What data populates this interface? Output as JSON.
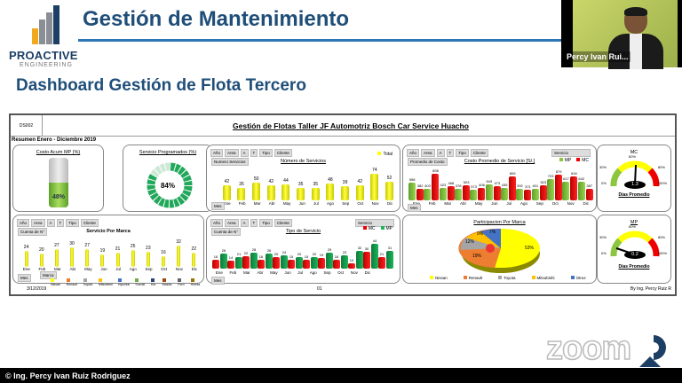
{
  "header": {
    "logo_brand": "PROACTIVE",
    "logo_sub": "ENGINEERING",
    "title": "Gestión de Mantenimiento",
    "subtitle": "Dashboard Gestión de Flota Tercero"
  },
  "webcam": {
    "participant_name": "Percy Ivan Rui..."
  },
  "dashboard": {
    "code": "DS002",
    "title": "Gestión de Flotas Taller JF Automotriz Bosch Car Service Huacho",
    "summary": "Resumen Enero - Diciembre 2019",
    "filters": [
      "Año",
      "Area",
      "A",
      "T",
      "Tipo",
      "Cliente"
    ],
    "month_filter": "Mes",
    "footer_date": "3/12/2019",
    "footer_page": "01",
    "footer_author": "By Ing. Percy Ruiz R"
  },
  "panels": {
    "costo_mp": {
      "title": "Costo Acum MP (%)",
      "value": "48%"
    },
    "servicio_programado": {
      "title": "Servicio Programados (%)",
      "value": "84%"
    },
    "numero_servicios": {
      "title": "Número de Servicios",
      "tag": "Numero Servicios",
      "legend": "Total"
    },
    "costo_promedio": {
      "title": "Costo Promedio de Servicio [S/.]",
      "tag": "Promedio de Costo",
      "selector": "Servicio",
      "legend_mp": "MP",
      "legend_mc": "MC"
    },
    "gauge_mc": {
      "title": "MC",
      "value": "1.3",
      "label": "Días Promedio",
      "ticks": [
        "0%",
        "30%",
        "60%",
        "80%",
        "100%"
      ]
    },
    "servicio_marca": {
      "title": "Servicio Por Marca",
      "tag": "Cuenta de N°",
      "marca_filter": "Marca",
      "legend": [
        "Nissan",
        "Renault",
        "Toyota",
        "Mitsubishi",
        "Hyundai",
        "Suzuki",
        "Kia",
        "Mazda",
        "Ford",
        "Honda"
      ]
    },
    "tipo_servicio": {
      "title": "Tipo de Servicio",
      "tag": "Cuenta de N°",
      "selector": "Servicio",
      "legend_mc": "MC",
      "legend_mp": "MP"
    },
    "participacion": {
      "title": "Participacion Por Marca",
      "legend": [
        "Nissan",
        "Renault",
        "Toyota",
        "Mitsubishi",
        "Otros"
      ]
    },
    "gauge_mp": {
      "title": "MP",
      "value": "0.2",
      "label": "Días Promedio",
      "ticks": [
        "0%",
        "30%",
        "60%",
        "80%",
        "100%"
      ]
    }
  },
  "chart_data": [
    {
      "type": "bar",
      "title": "Número de Servicios",
      "categories": [
        "Ene",
        "Feb",
        "Mar",
        "Abr",
        "May",
        "Jun",
        "Jul",
        "Ago",
        "Sep",
        "Oct",
        "Nov",
        "Dic"
      ],
      "series": [
        {
          "name": "Total",
          "values": [
            42,
            35,
            50,
            42,
            44,
            35,
            35,
            48,
            39,
            42,
            74,
            52
          ]
        }
      ]
    },
    {
      "type": "bar",
      "title": "Costo Promedio de Servicio [S/.]",
      "categories": [
        "Ene",
        "Feb",
        "Mar",
        "Abr",
        "May",
        "Jun",
        "Jul",
        "Ago",
        "Sep",
        "Oct",
        "Nov",
        "Dic"
      ],
      "series": [
        {
          "name": "MP",
          "values": [
            598,
            403,
            423,
            378,
            373,
            543,
            435,
            392,
            401,
            723,
            617,
            642
          ]
        },
        {
          "name": "MC",
          "values": [
            382,
            898,
            468,
            503,
            406,
            473,
            809,
            371,
            523,
            879,
            816,
            387
          ]
        }
      ]
    },
    {
      "type": "bar",
      "title": "Servicio Por Marca",
      "categories": [
        "Ene",
        "Feb",
        "Mar",
        "Abr",
        "May",
        "Jun",
        "Jul",
        "Ago",
        "Sep",
        "Oct",
        "Nov",
        "Dic"
      ],
      "series": [
        {
          "name": "Nissan",
          "values": [
            24,
            20,
            27,
            30,
            27,
            19,
            21,
            25,
            23,
            16,
            32,
            22
          ]
        }
      ]
    },
    {
      "type": "bar",
      "title": "Tipo de Servicio",
      "categories": [
        "Ene",
        "Feb",
        "Mar",
        "Abr",
        "May",
        "Jun",
        "Jul",
        "Ago",
        "Sep",
        "Oct",
        "Nov",
        "Dic"
      ],
      "series": [
        {
          "name": "MC",
          "values": [
            16,
            14,
            22,
            16,
            20,
            15,
            15,
            19,
            16,
            10,
            30,
            21
          ]
        },
        {
          "name": "MP",
          "values": [
            26,
            21,
            28,
            26,
            24,
            20,
            20,
            29,
            23,
            32,
            44,
            31
          ]
        }
      ]
    },
    {
      "type": "pie",
      "title": "Participacion Por Marca",
      "categories": [
        "Nissan",
        "Renault",
        "Toyota",
        "Mitsubishi",
        "Otros"
      ],
      "values": [
        53,
        19,
        12,
        9,
        7
      ]
    }
  ],
  "footer": {
    "copyright": "© Ing. Percy Ivan Ruiz Rodriguez",
    "zoom_logo": "zoom"
  }
}
